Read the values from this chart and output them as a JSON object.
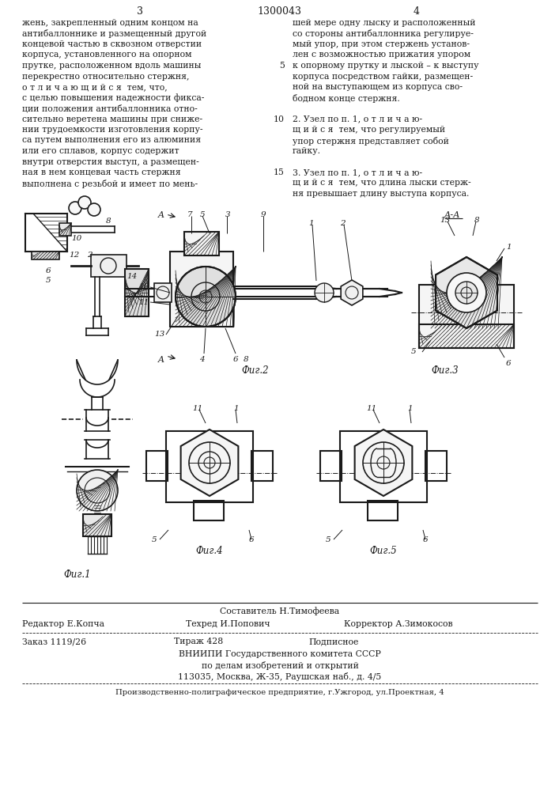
{
  "page_width": 7.07,
  "page_height": 10.0,
  "bg_color": "#ffffff",
  "text_color": "#1a1a1a",
  "header": {
    "left_page_num": "3",
    "center_patent": "1300043",
    "right_page_num": "4"
  },
  "left_column_text": [
    "жень, закрепленный одним концом на",
    "антибаллоннике и размещенный другой",
    "концевой частью в сквозном отверстии",
    "корпуса, установленного на опорном",
    "прутке, расположенном вдоль машины",
    "перекрестно относительно стержня,",
    "о т л и ч а ю щ и й с я  тем, что,",
    "с целью повышения надежности фикса-",
    "ции положения антибаллонника отно-",
    "сительно веретена машины при сниже-",
    "нии трудоемкости изготовления корпу-",
    "са путем выполнения его из алюминия",
    "или его сплавов, корпус содержит",
    "внутри отверстия выступ, а размещен-",
    "ная в нем концевая часть стержня",
    "выполнена с резьбой и имеет по мень-"
  ],
  "right_column_text": [
    [
      "",
      "шей мере одну лыску и расположенный"
    ],
    [
      "",
      "со стороны антибаллонника регулируе-"
    ],
    [
      "",
      "мый упор, при этом стержень установ-"
    ],
    [
      "",
      "лен с возможностью прижатия упором"
    ],
    [
      "5",
      "к опорному прутку и лыской – к выступу"
    ],
    [
      "",
      "корпуса посредством гайки, размещен-"
    ],
    [
      "",
      "ной на выступающем из корпуса сво-"
    ],
    [
      "",
      "бодном конце стержня."
    ],
    [
      "",
      ""
    ],
    [
      "10",
      "2. Узел по п. 1, о т л и ч а ю-"
    ],
    [
      "",
      "щ и й с я  тем, что регулируемый"
    ],
    [
      "",
      "упор стержня представляет собой"
    ],
    [
      "",
      "гайку."
    ],
    [
      "",
      ""
    ],
    [
      "15",
      "3. Узел по п. 1, о т л и ч а ю-"
    ],
    [
      "",
      "щ и й с я  тем, что длина лыски стерж-"
    ],
    [
      "",
      "ня превышает длину выступа корпуса."
    ]
  ],
  "footer": {
    "composer": "Составитель Н.Тимофеева",
    "editor": "Редактор Е.Копча",
    "techred": "Техред И.Попович",
    "corrector": "Корректор А.Зимокосов",
    "order": "Заказ 1119/26",
    "tirazh": "Тираж 428",
    "podpisnoe": "Подписное",
    "org": "ВНИИПИ Государственного комитета СССР",
    "org2": "по делам изобретений и открытий",
    "address": "113035, Москва, Ж-35, Раушская наб., д. 4/5",
    "printer": "Производственно-полиграфическое предприятие, г.Ужгород, ул.Проектная, 4"
  }
}
